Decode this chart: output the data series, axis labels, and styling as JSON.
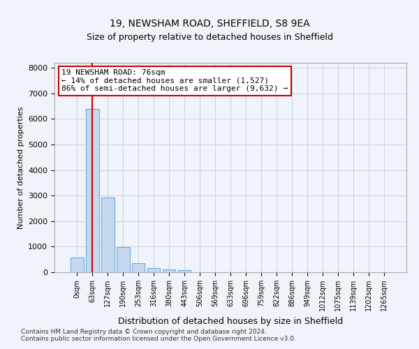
{
  "title1": "19, NEWSHAM ROAD, SHEFFIELD, S8 9EA",
  "title2": "Size of property relative to detached houses in Sheffield",
  "xlabel": "Distribution of detached houses by size in Sheffield",
  "ylabel": "Number of detached properties",
  "bar_values": [
    570,
    6400,
    2920,
    980,
    360,
    175,
    105,
    70,
    0,
    0,
    0,
    0,
    0,
    0,
    0,
    0,
    0,
    0,
    0,
    0,
    0
  ],
  "bar_labels": [
    "0sqm",
    "63sqm",
    "127sqm",
    "190sqm",
    "253sqm",
    "316sqm",
    "380sqm",
    "443sqm",
    "506sqm",
    "569sqm",
    "633sqm",
    "696sqm",
    "759sqm",
    "822sqm",
    "886sqm",
    "949sqm",
    "1012sqm",
    "1075sqm",
    "1139sqm",
    "1202sqm",
    "1265sqm"
  ],
  "bar_color": "#c5d8f0",
  "bar_edge_color": "#6aaed6",
  "grid_color": "#c8d4e8",
  "vline_x": 1,
  "vline_color": "#cc0000",
  "annotation_text": "19 NEWSHAM ROAD: 76sqm\n← 14% of detached houses are smaller (1,527)\n86% of semi-detached houses are larger (9,632) →",
  "annotation_box_color": "#ffffff",
  "annotation_border_color": "#cc0000",
  "ylim": [
    0,
    8200
  ],
  "yticks": [
    0,
    1000,
    2000,
    3000,
    4000,
    5000,
    6000,
    7000,
    8000
  ],
  "footer": "Contains HM Land Registry data © Crown copyright and database right 2024.\nContains public sector information licensed under the Open Government Licence v3.0.",
  "bg_color": "#f0f4fa"
}
